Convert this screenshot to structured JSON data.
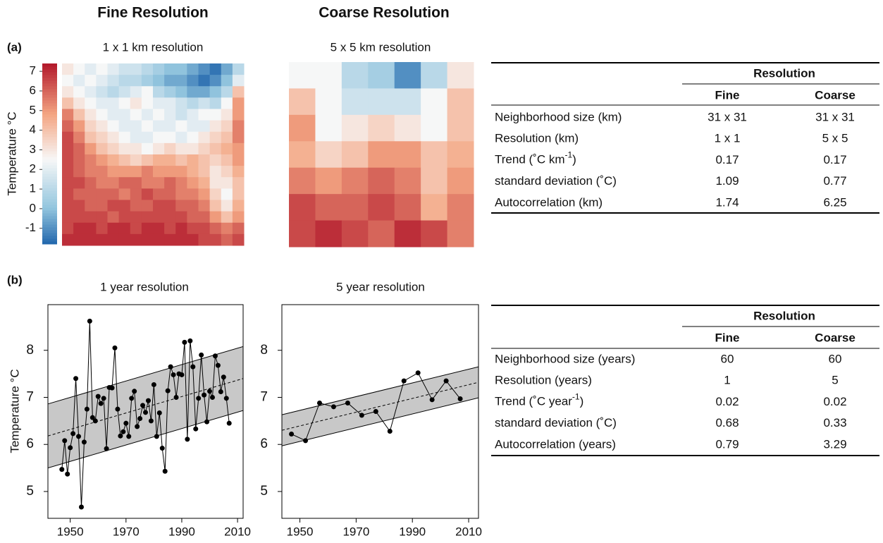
{
  "column_titles": [
    "Fine Resolution",
    "Coarse Resolution"
  ],
  "panel_labels": [
    "(a)",
    "(b)"
  ],
  "chart_data": [
    {
      "type": "heatmap",
      "title": "1 x 1 km resolution",
      "ylabel": "Temperature °C",
      "clim": [
        -1.8,
        7.4
      ],
      "colorbar_ticks": [
        -1,
        0,
        1,
        2,
        3,
        4,
        5,
        6,
        7
      ],
      "values": [
        [
          3,
          2.5,
          2,
          2.5,
          2,
          1.5,
          1.5,
          1,
          0.5,
          0,
          0,
          -0.5,
          -1,
          -1.5,
          -0.5,
          1
        ],
        [
          2.5,
          2,
          2.5,
          2,
          1.5,
          1,
          1,
          0.5,
          0,
          -0.5,
          -0.5,
          -1,
          -1.5,
          -1,
          0,
          2
        ],
        [
          3,
          2.5,
          2,
          1.5,
          1,
          1.5,
          2,
          2.5,
          1,
          0.5,
          0,
          -0.5,
          -0.5,
          0,
          1,
          4
        ],
        [
          4,
          3,
          2.5,
          2,
          2,
          2.5,
          3,
          2.5,
          2,
          2,
          1.5,
          1,
          1.5,
          1,
          2.5,
          5
        ],
        [
          5.5,
          4,
          3,
          2.5,
          2,
          2,
          2.5,
          2,
          2.5,
          2,
          1.5,
          2,
          2.5,
          2.5,
          3,
          5
        ],
        [
          6,
          5,
          3.5,
          3,
          2.5,
          2,
          2,
          2.5,
          2,
          2,
          2.5,
          2,
          2,
          3,
          3.5,
          5.5
        ],
        [
          6.5,
          5.5,
          4,
          3.5,
          3,
          2.5,
          2,
          2,
          2.5,
          2.5,
          2,
          2.5,
          3,
          3.5,
          4,
          5.5
        ],
        [
          6.5,
          6,
          5,
          4,
          3.5,
          3,
          3,
          2.5,
          3,
          3.5,
          3,
          3,
          3.5,
          4,
          4.5,
          5
        ],
        [
          6.5,
          6,
          5.5,
          5,
          4.5,
          4,
          3.5,
          4,
          4.5,
          4.5,
          4,
          4.5,
          4,
          3.5,
          4,
          5
        ],
        [
          6.5,
          6,
          5.5,
          5.5,
          5,
          5,
          5,
          5.5,
          5,
          5,
          5,
          4.5,
          4,
          3,
          3.5,
          4.5
        ],
        [
          6.5,
          6.5,
          6,
          5.5,
          5.5,
          6,
          6,
          5.5,
          5.5,
          6,
          5.5,
          5,
          4.5,
          3,
          3,
          4
        ],
        [
          6.5,
          6,
          6,
          6,
          6,
          5.5,
          6,
          6.5,
          6,
          6,
          5.5,
          5.5,
          5,
          3.5,
          2.5,
          4
        ],
        [
          6.5,
          6.5,
          6,
          6,
          6.5,
          6.5,
          6,
          6,
          6.5,
          6.5,
          6,
          6,
          5.5,
          4,
          3,
          4.5
        ],
        [
          6.5,
          6.5,
          6.5,
          6.5,
          6,
          6.5,
          6.5,
          6.5,
          6.5,
          6.5,
          6.5,
          6,
          6,
          5,
          4,
          5
        ],
        [
          6.5,
          7,
          7,
          6.5,
          7,
          7,
          6.5,
          7,
          7,
          6.5,
          7,
          6.5,
          6.5,
          6,
          5.5,
          6
        ],
        [
          7,
          7,
          7,
          7,
          7,
          7,
          7,
          7,
          7,
          7,
          7,
          7,
          6.5,
          6.5,
          6,
          6.5
        ]
      ]
    },
    {
      "type": "heatmap",
      "title": "5 x 5 km resolution",
      "clim": [
        -1.8,
        7.4
      ],
      "values": [
        [
          2.5,
          2.5,
          1,
          0.5,
          -1,
          1,
          3
        ],
        [
          4,
          2.5,
          1.5,
          1.5,
          1.5,
          2.5,
          4
        ],
        [
          5,
          2.5,
          3,
          3.5,
          3,
          2.5,
          4
        ],
        [
          4.5,
          3.5,
          4,
          5,
          5,
          4,
          4.5
        ],
        [
          5.5,
          5,
          5.5,
          6,
          5.5,
          4,
          5
        ],
        [
          6.5,
          6,
          6,
          6.5,
          6,
          4.5,
          5.5
        ],
        [
          6.5,
          7,
          6.5,
          6,
          7,
          6.5,
          5.5
        ]
      ]
    },
    {
      "type": "line",
      "title": "1 year resolution",
      "ylabel": "Temperature °C",
      "color": "#000000",
      "band_color": "#c8c8c8",
      "x": [
        1947,
        1948,
        1949,
        1950,
        1951,
        1952,
        1953,
        1954,
        1955,
        1956,
        1957,
        1958,
        1959,
        1960,
        1961,
        1962,
        1963,
        1964,
        1965,
        1966,
        1967,
        1968,
        1969,
        1970,
        1971,
        1972,
        1973,
        1974,
        1975,
        1976,
        1977,
        1978,
        1979,
        1980,
        1981,
        1982,
        1983,
        1984,
        1985,
        1986,
        1987,
        1988,
        1989,
        1990,
        1991,
        1992,
        1993,
        1994,
        1995,
        1996,
        1997,
        1998,
        1999,
        2000,
        2001,
        2002,
        2003,
        2004,
        2005,
        2006,
        2007
      ],
      "values": [
        5.47,
        6.08,
        5.37,
        5.93,
        6.23,
        7.4,
        6.17,
        4.67,
        6.05,
        6.75,
        8.62,
        6.57,
        6.5,
        7.02,
        6.87,
        6.98,
        5.91,
        7.21,
        7.2,
        8.05,
        6.75,
        6.18,
        6.27,
        6.45,
        6.17,
        6.98,
        7.13,
        6.38,
        6.55,
        6.83,
        6.68,
        6.93,
        6.5,
        7.27,
        6.17,
        6.67,
        5.92,
        5.43,
        7.14,
        7.65,
        7.48,
        7.0,
        7.5,
        7.48,
        8.17,
        6.11,
        8.2,
        7.65,
        6.33,
        6.98,
        7.9,
        7.05,
        6.48,
        7.13,
        7.0,
        7.88,
        7.68,
        7.12,
        7.43,
        6.98,
        6.45
      ],
      "trend": {
        "x": [
          1942,
          2012
        ],
        "y": [
          6.18,
          7.4
        ]
      },
      "band": 0.68,
      "xlim": [
        1942,
        2012
      ],
      "ylim": [
        4.43,
        8.97
      ],
      "xticks": [
        1950,
        1970,
        1990,
        2010
      ],
      "yticks": [
        5,
        6,
        7,
        8
      ]
    },
    {
      "type": "line",
      "title": "5 year resolution",
      "color": "#000000",
      "band_color": "#c8c8c8",
      "x": [
        1947,
        1952,
        1957,
        1962,
        1967,
        1972,
        1977,
        1982,
        1987,
        1992,
        1997,
        2002,
        2007
      ],
      "values": [
        6.22,
        6.08,
        6.88,
        6.8,
        6.88,
        6.62,
        6.7,
        6.28,
        7.35,
        7.52,
        6.95,
        7.35,
        6.97
      ],
      "trend": {
        "x": [
          1943.6,
          2013.5
        ],
        "y": [
          6.3,
          7.32
        ]
      },
      "band": 0.33,
      "xlim": [
        1943.6,
        2013.5
      ],
      "ylim": [
        4.43,
        8.97
      ],
      "xticks": [
        1950,
        1970,
        1990,
        2010
      ],
      "yticks": [
        5,
        6,
        7,
        8
      ]
    }
  ],
  "tables": [
    {
      "header": "Resolution",
      "columns": [
        "Fine",
        "Coarse"
      ],
      "rows": [
        {
          "label": "Neighborhood size (km)",
          "values": [
            "31 x 31",
            "31 x 31"
          ]
        },
        {
          "label": "Resolution (km)",
          "values": [
            "1 x 1",
            "5 x 5"
          ]
        },
        {
          "label": {
            "text": "Trend (˚C km",
            "sup": "-1",
            "after": ")"
          },
          "values": [
            0.17,
            0.17
          ]
        },
        {
          "label": "standard deviation (˚C)",
          "values": [
            1.09,
            0.77
          ]
        },
        {
          "label": "Autocorrelation (km)",
          "values": [
            1.74,
            6.25
          ]
        }
      ]
    },
    {
      "header": "Resolution",
      "columns": [
        "Fine",
        "Coarse"
      ],
      "rows": [
        {
          "label": "Neighborhood size (years)",
          "values": [
            60,
            60
          ]
        },
        {
          "label": "Resolution (years)",
          "values": [
            1,
            5
          ]
        },
        {
          "label": {
            "text": "Trend (˚C year",
            "sup": "-1",
            "after": ")"
          },
          "values": [
            0.02,
            0.02
          ]
        },
        {
          "label": "standard deviation (˚C)",
          "values": [
            0.68,
            0.33
          ]
        },
        {
          "label": "Autocorrelation (years)",
          "values": [
            0.79,
            3.29
          ]
        }
      ]
    }
  ]
}
